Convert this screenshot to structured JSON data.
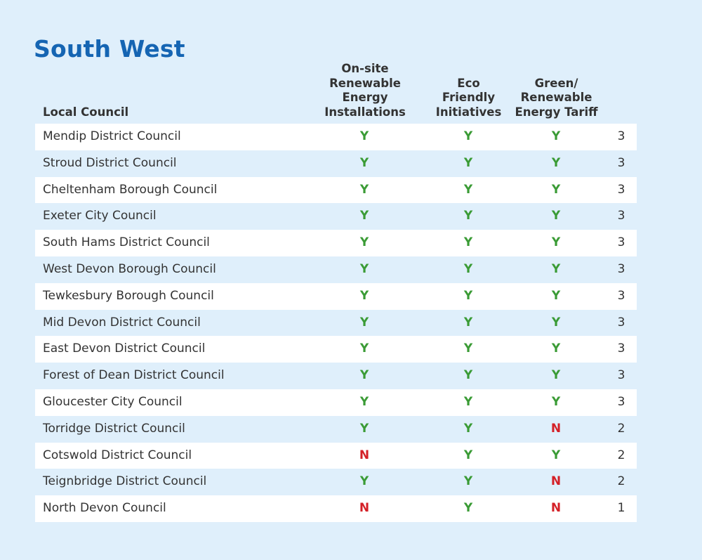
{
  "title": "South West",
  "headers": {
    "council": "Local Council",
    "col1": [
      "On-site",
      "Renewable Energy",
      "Installations"
    ],
    "col2": [
      "Eco",
      "Friendly",
      "Initiatives"
    ],
    "col3": [
      "Green/",
      "Renewable",
      "Energy Tariff"
    ]
  },
  "colors": {
    "yes": "#3a9b35",
    "no": "#d42027",
    "title": "#1565b3",
    "background": "#dfeffb"
  },
  "rows": [
    {
      "council": "Mendip District Council",
      "onsite": "Y",
      "eco": "Y",
      "tariff": "Y",
      "score": "3"
    },
    {
      "council": "Stroud District Council",
      "onsite": "Y",
      "eco": "Y",
      "tariff": "Y",
      "score": "3"
    },
    {
      "council": "Cheltenham Borough Council",
      "onsite": "Y",
      "eco": "Y",
      "tariff": "Y",
      "score": "3"
    },
    {
      "council": "Exeter City Council",
      "onsite": "Y",
      "eco": "Y",
      "tariff": "Y",
      "score": "3"
    },
    {
      "council": "South Hams District Council",
      "onsite": "Y",
      "eco": "Y",
      "tariff": "Y",
      "score": "3"
    },
    {
      "council": "West Devon Borough Council",
      "onsite": "Y",
      "eco": "Y",
      "tariff": "Y",
      "score": "3"
    },
    {
      "council": "Tewkesbury Borough Council",
      "onsite": "Y",
      "eco": "Y",
      "tariff": "Y",
      "score": "3"
    },
    {
      "council": "Mid Devon District Council",
      "onsite": "Y",
      "eco": "Y",
      "tariff": "Y",
      "score": "3"
    },
    {
      "council": "East Devon District Council",
      "onsite": "Y",
      "eco": "Y",
      "tariff": "Y",
      "score": "3"
    },
    {
      "council": "Forest of Dean District Council",
      "onsite": "Y",
      "eco": "Y",
      "tariff": "Y",
      "score": "3"
    },
    {
      "council": "Gloucester City Council",
      "onsite": "Y",
      "eco": "Y",
      "tariff": "Y",
      "score": "3"
    },
    {
      "council": "Torridge District Council",
      "onsite": "Y",
      "eco": "Y",
      "tariff": "N",
      "score": "2"
    },
    {
      "council": "Cotswold District Council",
      "onsite": "N",
      "eco": "Y",
      "tariff": "Y",
      "score": "2"
    },
    {
      "council": "Teignbridge District Council",
      "onsite": "Y",
      "eco": "Y",
      "tariff": "N",
      "score": "2"
    },
    {
      "council": "North Devon Council",
      "onsite": "N",
      "eco": "Y",
      "tariff": "N",
      "score": "1"
    }
  ]
}
